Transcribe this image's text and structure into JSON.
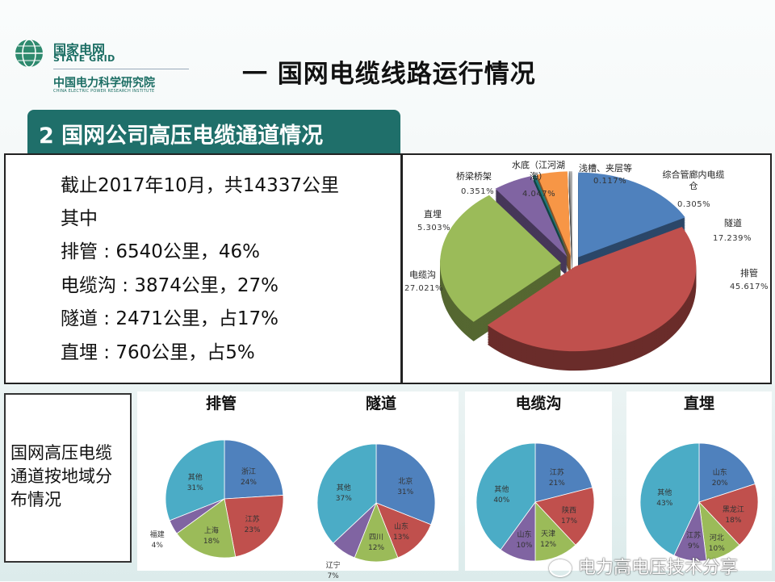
{
  "logo": {
    "cn": "国家电网",
    "en": "STATE GRID",
    "cn2": "中国电力科学研究院",
    "en2": "CHINA ELECTRIC POWER RESEARCH INSTITUTE"
  },
  "title": "一  国网电缆线路运行情况",
  "banner": "2 国网公司高压电缆通道情况",
  "summary": {
    "lines": [
      "截止2017年10月，共14337公里",
      "其中",
      "排管 : 6540公里，46%",
      "电缆沟 : 3874公里，27%",
      "隧道 : 2471公里，占17%",
      "直埋 : 760公里，占5%"
    ]
  },
  "region_caption": "国网高压电缆通道按地域分布情况",
  "watermark": "电力高电压技术分享",
  "colors": {
    "blue": "#4f81bd",
    "red": "#c0504d",
    "green": "#9bbb59",
    "purple": "#8064a2",
    "cyan": "#4bacc6",
    "orange": "#f79646",
    "teal": "#1f6f6a"
  },
  "chart_data": [
    {
      "type": "pie",
      "title": "",
      "three_d": true,
      "categories": [
        "隧道",
        "排管",
        "电缆沟",
        "直埋",
        "桥梁桥架",
        "水底（江河湖海）",
        "浅槽、夹层等",
        "综合管廊内电缆仓"
      ],
      "values": [
        17.239,
        45.617,
        27.021,
        5.303,
        0.351,
        4.047,
        0.117,
        0.305
      ],
      "labels": [
        "17.239%",
        "45.617%",
        "27.021%",
        "5.303%",
        "0.351%",
        "4.047%",
        "0.117%",
        "0.305%"
      ],
      "colors": [
        "#4f81bd",
        "#c0504d",
        "#9bbb59",
        "#8064a2",
        "#1f7a7a",
        "#f79646",
        "#7f7f7f",
        "#b0b0b0"
      ]
    },
    {
      "type": "pie",
      "title": "排管",
      "categories": [
        "浙江",
        "江苏",
        "上海",
        "福建",
        "其他"
      ],
      "values": [
        24,
        23,
        18,
        4,
        31
      ],
      "colors": [
        "#4f81bd",
        "#c0504d",
        "#9bbb59",
        "#8064a2",
        "#4bacc6"
      ]
    },
    {
      "type": "pie",
      "title": "隧道",
      "categories": [
        "北京",
        "山东",
        "四川",
        "辽宁",
        "其他"
      ],
      "values": [
        31,
        13,
        12,
        7,
        37
      ],
      "colors": [
        "#4f81bd",
        "#c0504d",
        "#9bbb59",
        "#8064a2",
        "#4bacc6"
      ]
    },
    {
      "type": "pie",
      "title": "电缆沟",
      "categories": [
        "江苏",
        "陕西",
        "天津",
        "山东",
        "其他"
      ],
      "values": [
        21,
        17,
        12,
        10,
        40
      ],
      "colors": [
        "#4f81bd",
        "#c0504d",
        "#9bbb59",
        "#8064a2",
        "#4bacc6"
      ]
    },
    {
      "type": "pie",
      "title": "直埋",
      "categories": [
        "山东",
        "黑龙江",
        "河北",
        "江苏",
        "其他"
      ],
      "values": [
        20,
        18,
        10,
        9,
        43
      ],
      "colors": [
        "#4f81bd",
        "#c0504d",
        "#9bbb59",
        "#8064a2",
        "#4bacc6"
      ]
    }
  ]
}
